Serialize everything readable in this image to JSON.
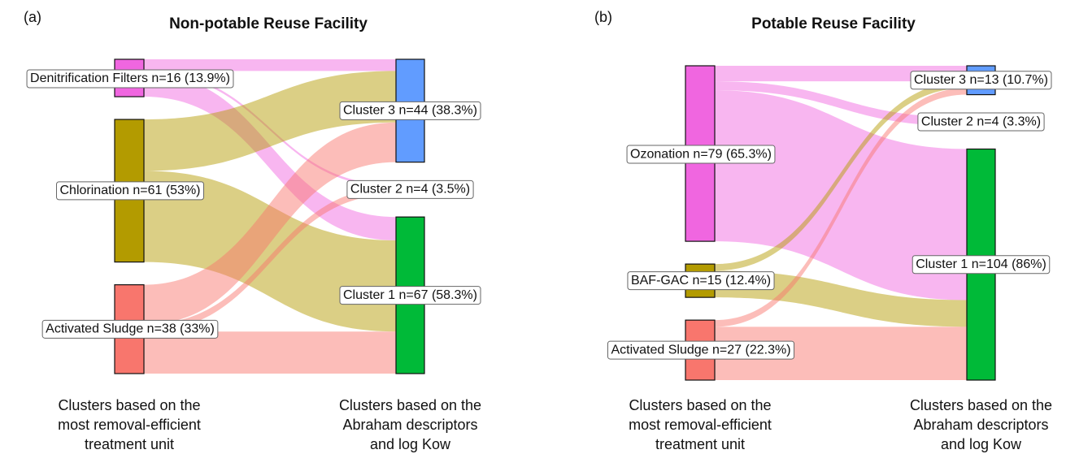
{
  "chart_data": [
    {
      "type": "sankey",
      "panel_label": "(a)",
      "title": "Non-potable Reuse Facility",
      "sources": [
        {
          "label": "Denitrification Filters  n=16 (13.9%)",
          "value": 16,
          "color": "#f066e0"
        },
        {
          "label": "Chlorination  n=61 (53%)",
          "value": 61,
          "color": "#b39b00"
        },
        {
          "label": "Activated Sludge  n=38 (33%)",
          "value": 38,
          "color": "#f8766d"
        }
      ],
      "targets": [
        {
          "label": "Cluster 3  n=44 (38.3%)",
          "value": 44,
          "color": "#619cff"
        },
        {
          "label": "Cluster 2  n=4 (3.5%)",
          "value": 4,
          "color": "#f066e0"
        },
        {
          "label": "Cluster 1  n=67 (58.3%)",
          "value": 67,
          "color": "#00ba38"
        }
      ],
      "links": [
        {
          "source": 0,
          "target": 0,
          "value": 5
        },
        {
          "source": 0,
          "target": 1,
          "value": 1
        },
        {
          "source": 0,
          "target": 2,
          "value": 10
        },
        {
          "source": 1,
          "target": 0,
          "value": 22
        },
        {
          "source": 1,
          "target": 2,
          "value": 39
        },
        {
          "source": 2,
          "target": 0,
          "value": 17
        },
        {
          "source": 2,
          "target": 1,
          "value": 3
        },
        {
          "source": 2,
          "target": 2,
          "value": 18
        }
      ],
      "source_caption": [
        "Clusters based on the",
        "most removal-efficient",
        "treatment unit"
      ],
      "target_caption": [
        "Clusters based on the",
        "Abraham descriptors",
        "and log Kow"
      ]
    },
    {
      "type": "sankey",
      "panel_label": "(b)",
      "title": "Potable Reuse Facility",
      "sources": [
        {
          "label": "Ozonation  n=79 (65.3%)",
          "value": 79,
          "color": "#f066e0"
        },
        {
          "label": "BAF-GAC  n=15 (12.4%)",
          "value": 15,
          "color": "#b39b00"
        },
        {
          "label": "Activated Sludge  n=27 (22.3%)",
          "value": 27,
          "color": "#f8766d"
        }
      ],
      "targets": [
        {
          "label": "Cluster 3  n=13 (10.7%)",
          "value": 13,
          "color": "#619cff"
        },
        {
          "label": "Cluster 2  n=4 (3.3%)",
          "value": 4,
          "color": "#f066e0"
        },
        {
          "label": "Cluster 1  n=104 (86%)",
          "value": 104,
          "color": "#00ba38"
        }
      ],
      "links": [
        {
          "source": 0,
          "target": 0,
          "value": 7
        },
        {
          "source": 0,
          "target": 1,
          "value": 4
        },
        {
          "source": 0,
          "target": 2,
          "value": 68
        },
        {
          "source": 1,
          "target": 0,
          "value": 3
        },
        {
          "source": 1,
          "target": 2,
          "value": 12
        },
        {
          "source": 2,
          "target": 0,
          "value": 3
        },
        {
          "source": 2,
          "target": 2,
          "value": 24
        }
      ],
      "source_caption": [
        "Clusters based on the",
        "most removal-efficient",
        "treatment unit"
      ],
      "target_caption": [
        "Clusters based on the",
        "Abraham descriptors",
        "and log Kow"
      ]
    }
  ]
}
